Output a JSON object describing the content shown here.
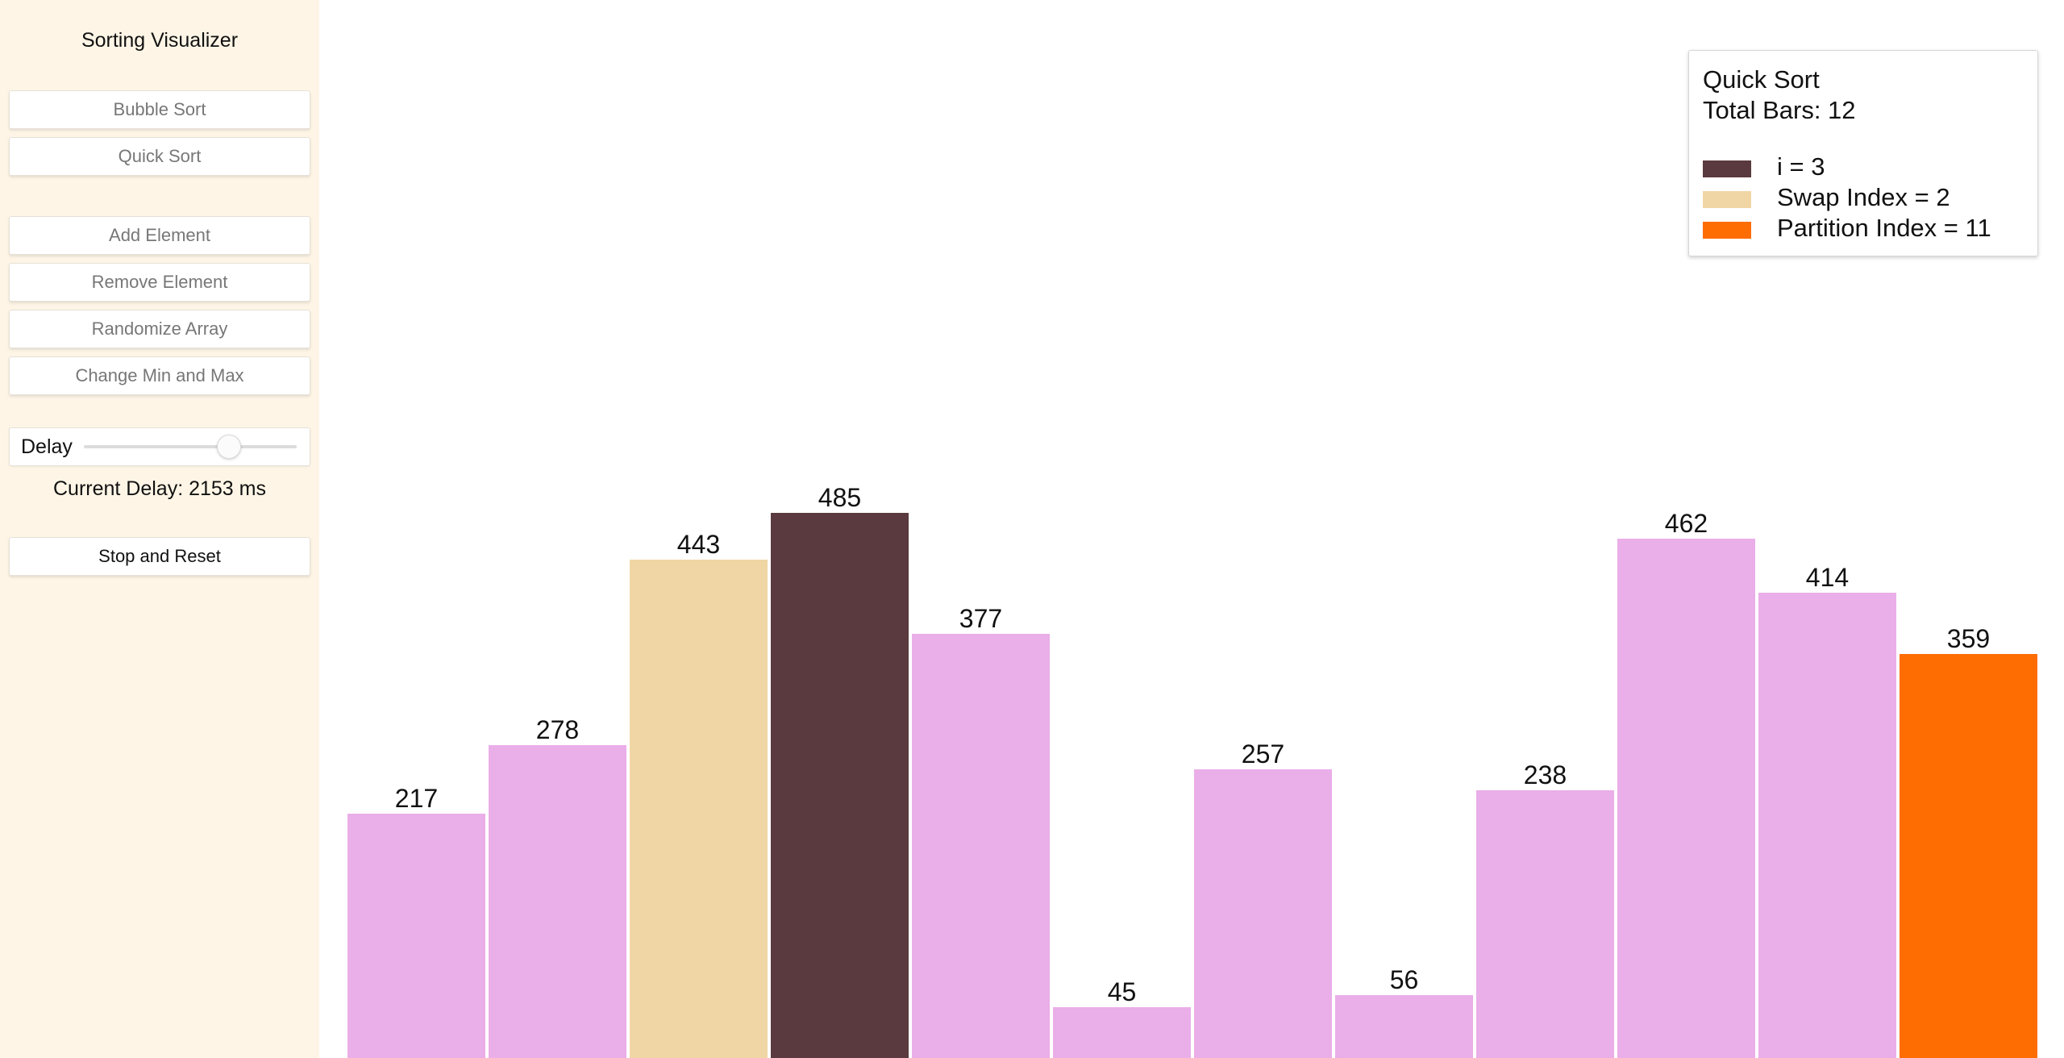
{
  "sidebar": {
    "title": "Sorting Visualizer",
    "buttons": {
      "bubble_sort": "Bubble Sort",
      "quick_sort": "Quick Sort",
      "add_element": "Add Element",
      "remove_element": "Remove Element",
      "randomize_array": "Randomize Array",
      "change_min_max": "Change Min and Max",
      "stop_reset": "Stop and Reset"
    },
    "delay": {
      "label": "Delay",
      "slider_fraction": 0.68,
      "current_text": "Current Delay: 2153 ms"
    }
  },
  "legend": {
    "title": "Quick Sort",
    "total": "Total Bars: 12",
    "items": [
      {
        "label": "i = 3",
        "color": "#5a3a3e"
      },
      {
        "label": "Swap Index = 2",
        "color": "#f1d6a5"
      },
      {
        "label": "Partition Index = 11",
        "color": "#fe6d02"
      }
    ]
  },
  "colors": {
    "default_bar": "#eaaee8",
    "i_bar": "#5a3a3e",
    "swap_bar": "#f1d6a5",
    "partition_bar": "#fe6d02",
    "sidebar_bg": "#fef5e6"
  },
  "chart_data": {
    "type": "bar",
    "values": [
      217,
      278,
      443,
      485,
      377,
      45,
      257,
      56,
      238,
      462,
      414,
      359
    ],
    "highlights": {
      "i": 3,
      "swap_index": 2,
      "partition_index": 11
    },
    "ylim": [
      0,
      700
    ]
  }
}
